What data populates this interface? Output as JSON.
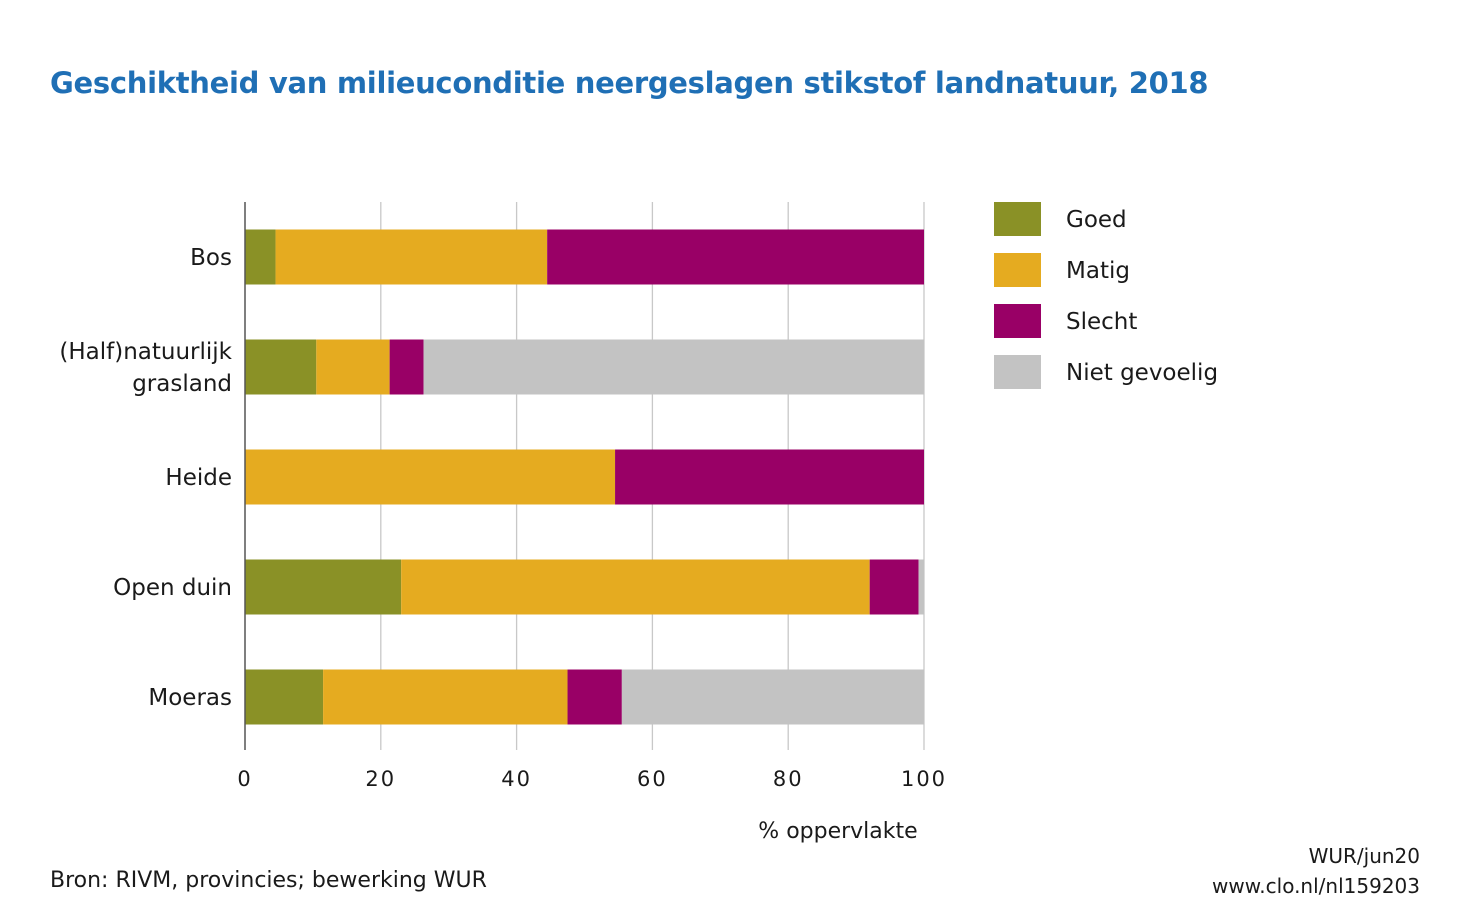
{
  "title": "Geschiktheid van milieuconditie neergeslagen stikstof landnatuur, 2018",
  "chart_data": {
    "type": "bar",
    "orientation": "horizontal",
    "stacked": true,
    "categories": [
      [
        "Bos"
      ],
      [
        "(Half)natuurlijk",
        "grasland"
      ],
      [
        "Heide"
      ],
      [
        "Open duin"
      ],
      [
        "Moeras"
      ]
    ],
    "series": [
      {
        "name": "Goed",
        "color": "#8a9126",
        "values": [
          4.5,
          10.5,
          0,
          23,
          11.5
        ]
      },
      {
        "name": "Matig",
        "color": "#e5ab20",
        "values": [
          40,
          10.8,
          54.5,
          69,
          36
        ]
      },
      {
        "name": "Slecht",
        "color": "#990066",
        "values": [
          55.5,
          5,
          45.5,
          7.2,
          8
        ]
      },
      {
        "name": "Niet gevoelig",
        "color": "#c3c3c3",
        "values": [
          0,
          73.7,
          0,
          0.8,
          44.5
        ]
      }
    ],
    "xlabel": "% oppervlakte",
    "xlim": [
      0,
      100
    ],
    "xticks": [
      "0",
      "20",
      "40",
      "60",
      "80",
      "100"
    ],
    "grid": true,
    "legend_position": "right"
  },
  "footer": {
    "source": "Bron: RIVM, provincies; bewerking WUR",
    "credit": "WUR/jun20",
    "url": "www.clo.nl/nl159203"
  }
}
